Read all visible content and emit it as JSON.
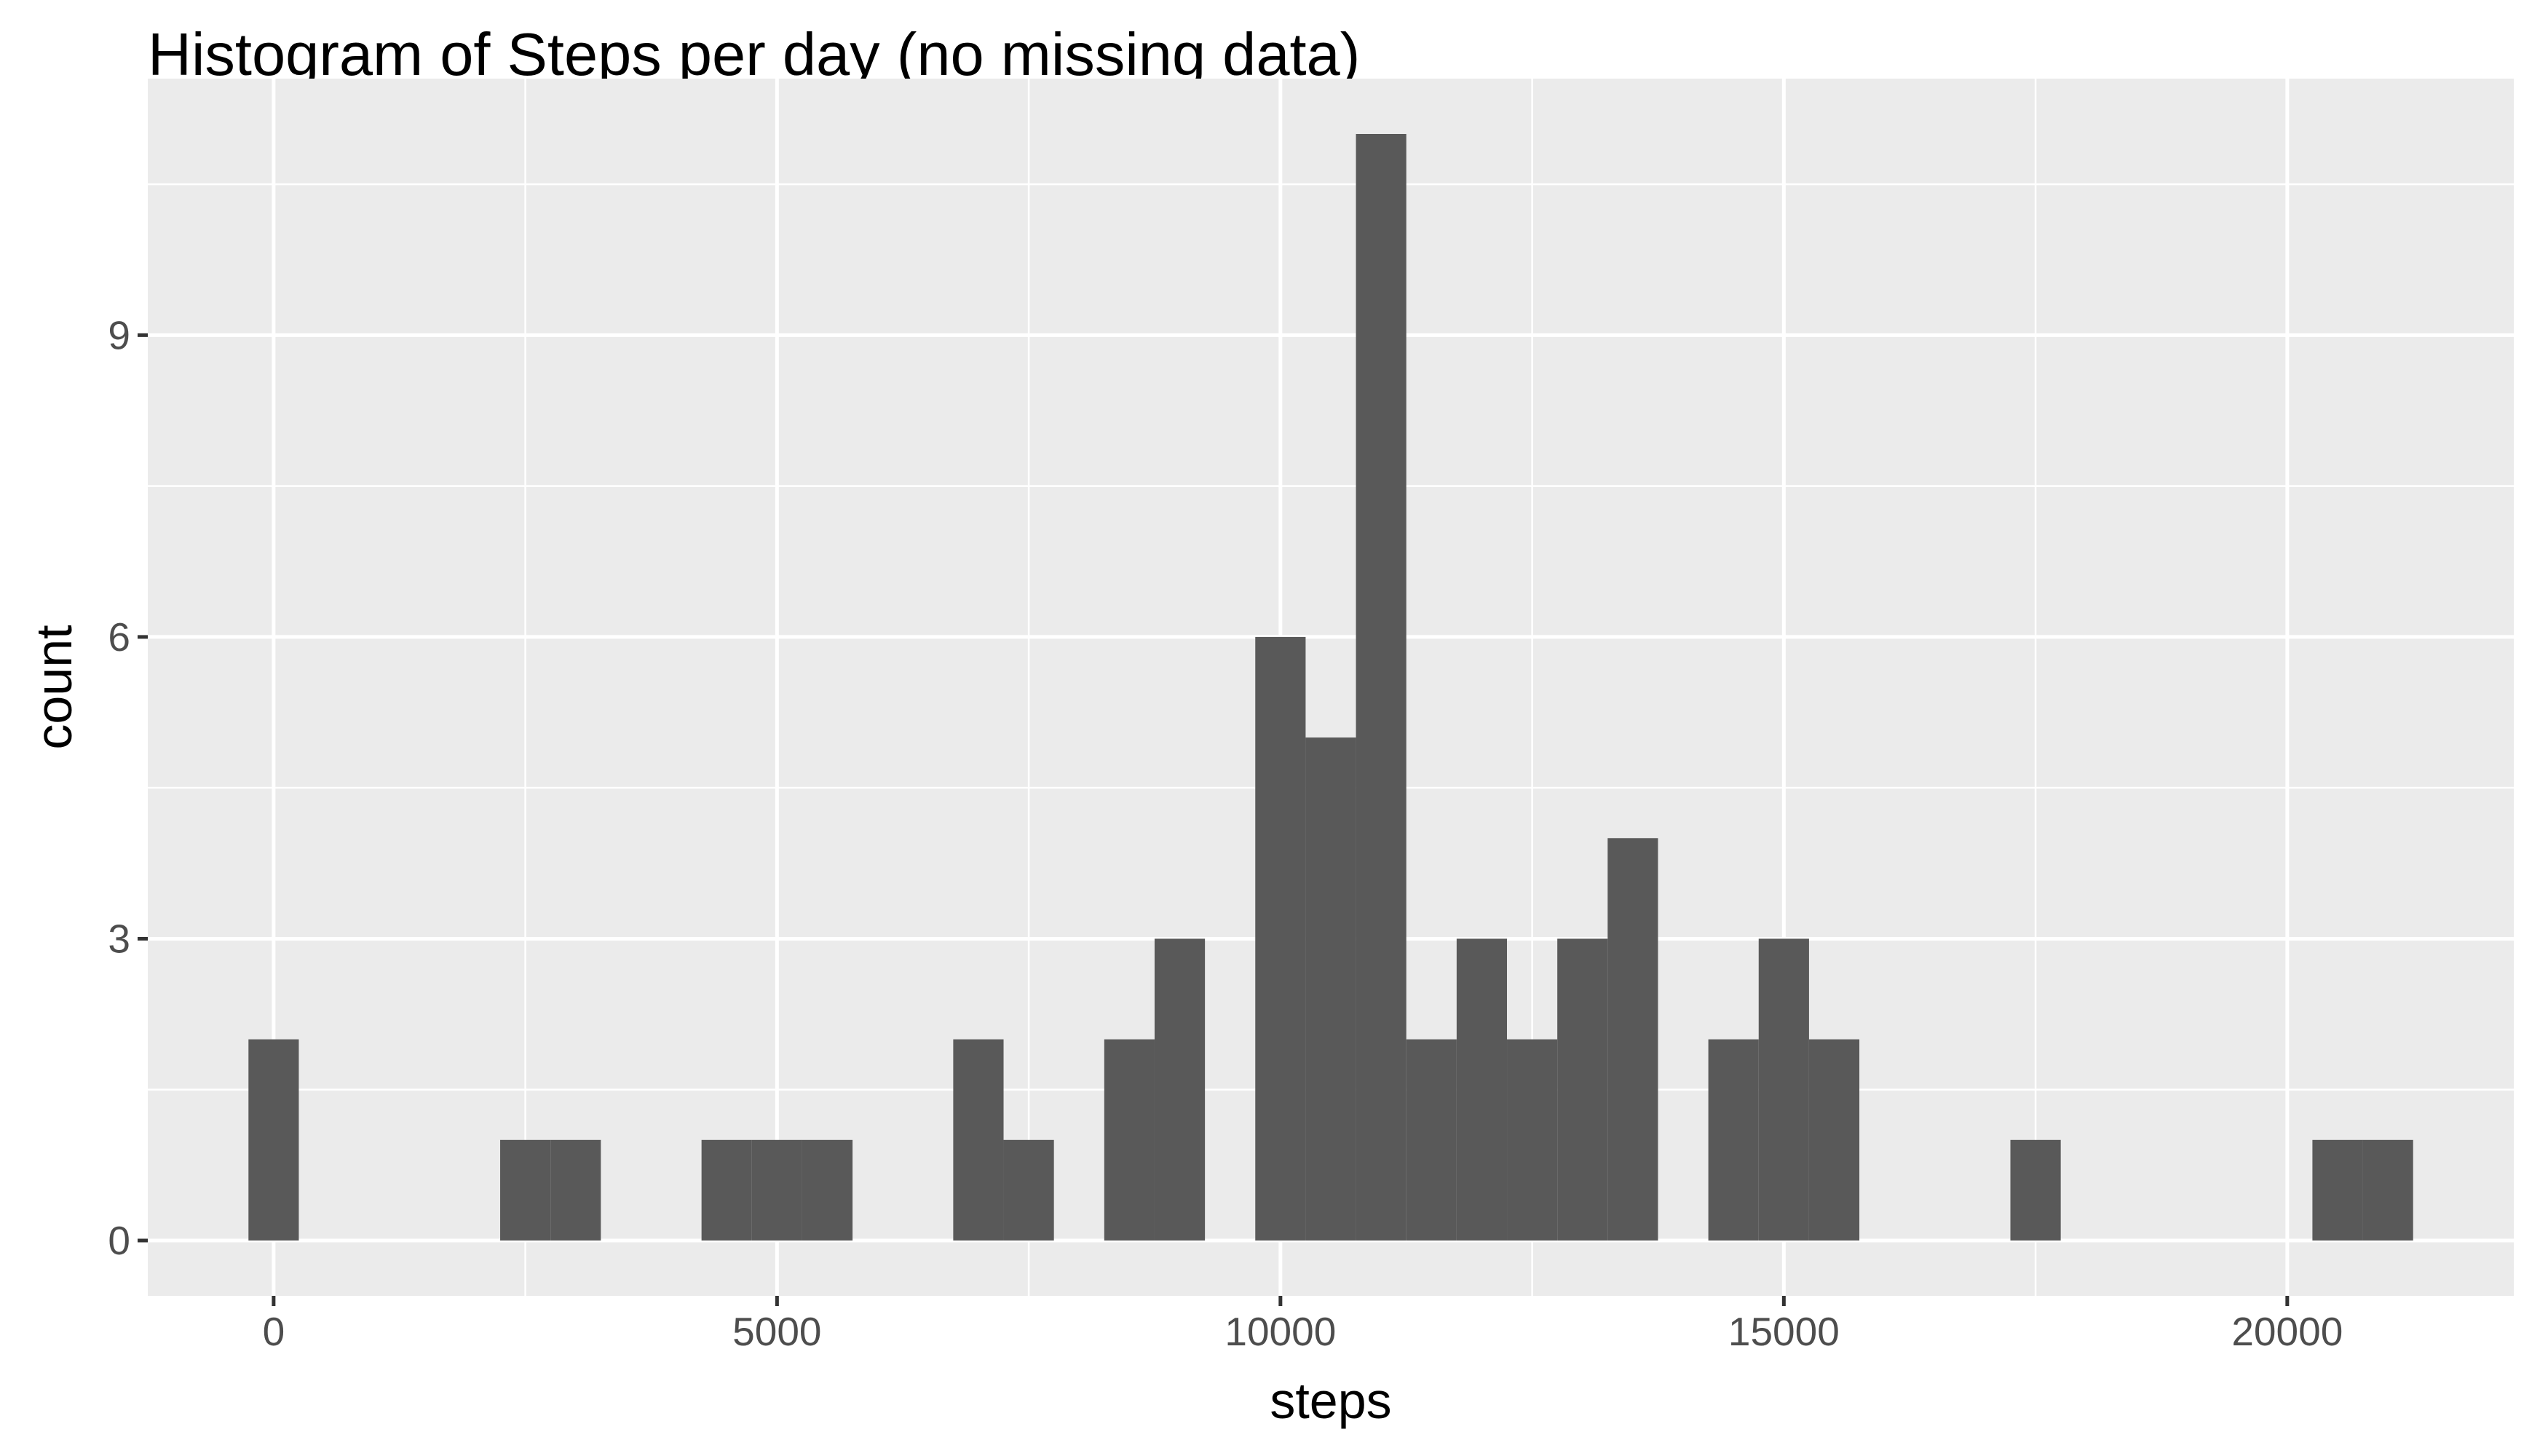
{
  "chart_data": {
    "type": "bar",
    "subtype": "histogram",
    "title": "Histogram of Steps per day (no missing data)",
    "xlabel": "steps",
    "ylabel": "count",
    "bin_width": 500,
    "xlim": [
      -1250,
      22250
    ],
    "ylim": [
      -0.55,
      11.55
    ],
    "x_ticks": [
      0,
      5000,
      10000,
      15000,
      20000
    ],
    "x_tick_labels": [
      "0",
      "5000",
      "10000",
      "15000",
      "20000"
    ],
    "y_ticks": [
      0,
      3,
      6,
      9
    ],
    "y_tick_labels": [
      "0",
      "3",
      "6",
      "9"
    ],
    "grid": true,
    "bar_color": "#595959",
    "panel_color": "#ebebeb",
    "bins": [
      {
        "x": 0,
        "count": 2
      },
      {
        "x": 2500,
        "count": 1
      },
      {
        "x": 3000,
        "count": 1
      },
      {
        "x": 4500,
        "count": 1
      },
      {
        "x": 5000,
        "count": 1
      },
      {
        "x": 5500,
        "count": 1
      },
      {
        "x": 7000,
        "count": 2
      },
      {
        "x": 7500,
        "count": 1
      },
      {
        "x": 8500,
        "count": 2
      },
      {
        "x": 9000,
        "count": 3
      },
      {
        "x": 10000,
        "count": 6
      },
      {
        "x": 10500,
        "count": 5
      },
      {
        "x": 11000,
        "count": 11
      },
      {
        "x": 11500,
        "count": 2
      },
      {
        "x": 12000,
        "count": 3
      },
      {
        "x": 12500,
        "count": 2
      },
      {
        "x": 13000,
        "count": 3
      },
      {
        "x": 13500,
        "count": 4
      },
      {
        "x": 14500,
        "count": 2
      },
      {
        "x": 15000,
        "count": 3
      },
      {
        "x": 15500,
        "count": 2
      },
      {
        "x": 17500,
        "count": 1
      },
      {
        "x": 20500,
        "count": 1
      },
      {
        "x": 21000,
        "count": 1
      }
    ]
  }
}
